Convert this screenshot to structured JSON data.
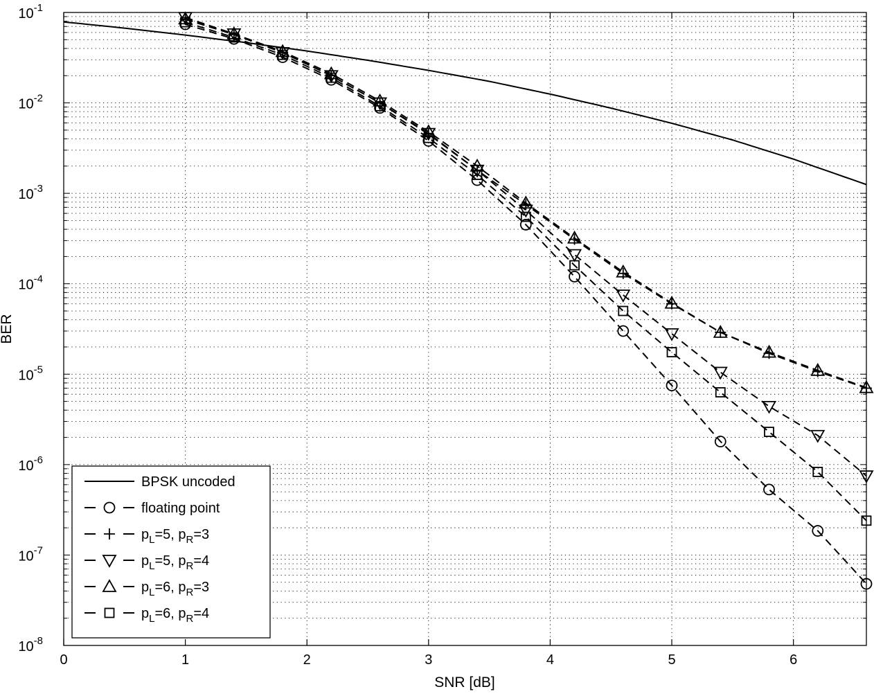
{
  "chart_data": {
    "type": "line",
    "title": "",
    "xlabel": "SNR [dB]",
    "ylabel": "BER",
    "xlim": [
      0,
      6.6
    ],
    "ylim": [
      1e-08,
      0.1
    ],
    "yscale": "log",
    "grid": true,
    "minor_grid": true,
    "legend_position": "bottom-left",
    "x_ticks": [
      0,
      1,
      2,
      3,
      4,
      5,
      6
    ],
    "y_ticks": [
      {
        "base": "10",
        "exp": "-8"
      },
      {
        "base": "10",
        "exp": "-7"
      },
      {
        "base": "10",
        "exp": "-6"
      },
      {
        "base": "10",
        "exp": "-5"
      },
      {
        "base": "10",
        "exp": "-4"
      },
      {
        "base": "10",
        "exp": "-3"
      },
      {
        "base": "10",
        "exp": "-2"
      },
      {
        "base": "10",
        "exp": "-1"
      }
    ],
    "series": [
      {
        "name": "BPSK uncoded",
        "label_parts": [
          [
            "BPSK uncoded",
            ""
          ]
        ],
        "style": "solid",
        "marker": "none",
        "x": [
          0,
          0.5,
          1,
          1.5,
          2,
          2.5,
          3,
          3.5,
          4,
          4.5,
          5,
          5.5,
          6,
          6.6
        ],
        "y": [
          0.0786,
          0.0671,
          0.0563,
          0.0464,
          0.0375,
          0.0296,
          0.0229,
          0.0173,
          0.0125,
          0.00876,
          0.00595,
          0.00389,
          0.00239,
          0.00125
        ]
      },
      {
        "name": "floating point",
        "label_parts": [
          [
            "floating point",
            ""
          ]
        ],
        "style": "dashed",
        "marker": "circle",
        "x": [
          1,
          1.4,
          1.8,
          2.2,
          2.6,
          3.0,
          3.4,
          3.8,
          4.2,
          4.6,
          5.0,
          5.4,
          5.8,
          6.2,
          6.6
        ],
        "y": [
          0.074,
          0.051,
          0.032,
          0.018,
          0.0088,
          0.0038,
          0.0014,
          0.00045,
          0.00012,
          3e-05,
          7.5e-06,
          1.8e-06,
          5.3e-07,
          1.85e-07,
          4.8e-08
        ]
      },
      {
        "name": "pL=5, pR=3",
        "label_parts": [
          [
            "p",
            ""
          ],
          [
            "L",
            "sub"
          ],
          [
            "=5, p",
            ""
          ],
          [
            "R",
            "sub"
          ],
          [
            "=3",
            ""
          ]
        ],
        "style": "dashed",
        "marker": "plus",
        "x": [
          1,
          1.4,
          1.8,
          2.2,
          2.6,
          3.0,
          3.4,
          3.8,
          4.2,
          4.6,
          5.0,
          5.4,
          5.8,
          6.2,
          6.6
        ],
        "y": [
          0.084,
          0.057,
          0.036,
          0.02,
          0.01,
          0.0045,
          0.0018,
          0.00075,
          0.00031,
          0.00013,
          6e-05,
          2.9e-05,
          1.7e-05,
          1.07e-05,
          7e-06
        ]
      },
      {
        "name": "pL=5, pR=4",
        "label_parts": [
          [
            "p",
            ""
          ],
          [
            "L",
            "sub"
          ],
          [
            "=5, p",
            ""
          ],
          [
            "R",
            "sub"
          ],
          [
            "=4",
            ""
          ]
        ],
        "style": "dashed",
        "marker": "triangle-down",
        "x": [
          1,
          1.4,
          1.8,
          2.2,
          2.6,
          3.0,
          3.4,
          3.8,
          4.2,
          4.6,
          5.0,
          5.4,
          5.8,
          6.2,
          6.6
        ],
        "y": [
          0.088,
          0.058,
          0.036,
          0.02,
          0.01,
          0.0046,
          0.0018,
          0.00065,
          0.00021,
          7.5e-05,
          2.8e-05,
          1.05e-05,
          4.4e-06,
          2.1e-06,
          7.5e-07
        ]
      },
      {
        "name": "pL=6, pR=3",
        "label_parts": [
          [
            "p",
            ""
          ],
          [
            "L",
            "sub"
          ],
          [
            "=6, p",
            ""
          ],
          [
            "R",
            "sub"
          ],
          [
            "=3",
            ""
          ]
        ],
        "style": "dashed",
        "marker": "triangle-up",
        "x": [
          1,
          1.4,
          1.8,
          2.2,
          2.6,
          3.0,
          3.4,
          3.8,
          4.2,
          4.6,
          5.0,
          5.4,
          5.8,
          6.2,
          6.6
        ],
        "y": [
          0.085,
          0.058,
          0.037,
          0.021,
          0.0105,
          0.0048,
          0.002,
          0.00078,
          0.00032,
          0.000135,
          6.1e-05,
          2.9e-05,
          1.75e-05,
          1.1e-05,
          7.1e-06
        ]
      },
      {
        "name": "pL=6, pR=4",
        "label_parts": [
          [
            "p",
            ""
          ],
          [
            "L",
            "sub"
          ],
          [
            "=6, p",
            ""
          ],
          [
            "R",
            "sub"
          ],
          [
            "=4",
            ""
          ]
        ],
        "style": "dashed",
        "marker": "square",
        "x": [
          1,
          1.4,
          1.8,
          2.2,
          2.6,
          3.0,
          3.4,
          3.8,
          4.2,
          4.6,
          5.0,
          5.4,
          5.8,
          6.2,
          6.6
        ],
        "y": [
          0.078,
          0.053,
          0.034,
          0.019,
          0.0092,
          0.0041,
          0.0016,
          0.00055,
          0.00016,
          5e-05,
          1.75e-05,
          6.3e-06,
          2.3e-06,
          8.3e-07,
          2.4e-07
        ]
      }
    ]
  }
}
